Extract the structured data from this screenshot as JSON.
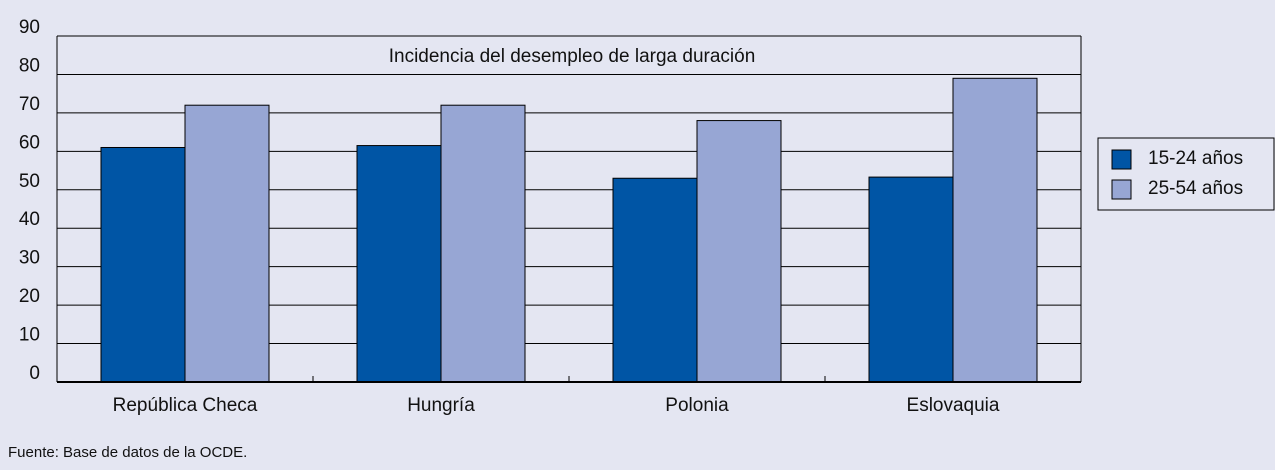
{
  "chart_data": {
    "type": "bar",
    "title": "Incidencia del desempleo de larga duración",
    "categories": [
      "República Checa",
      "Hungría",
      "Polonia",
      "Eslovaquia"
    ],
    "series": [
      {
        "name": "15-24 años",
        "color": "#0055a5",
        "values": [
          61,
          61.5,
          53,
          53.3
        ]
      },
      {
        "name": "25-54 años",
        "color": "#97a6d4",
        "values": [
          72,
          72,
          68,
          79
        ]
      }
    ],
    "ylim": [
      0,
      90
    ],
    "yticks": [
      0,
      10,
      20,
      30,
      40,
      50,
      60,
      70,
      80,
      90
    ],
    "grid": true,
    "legend": "right",
    "source": "Fuente: Base de datos de la OCDE."
  }
}
